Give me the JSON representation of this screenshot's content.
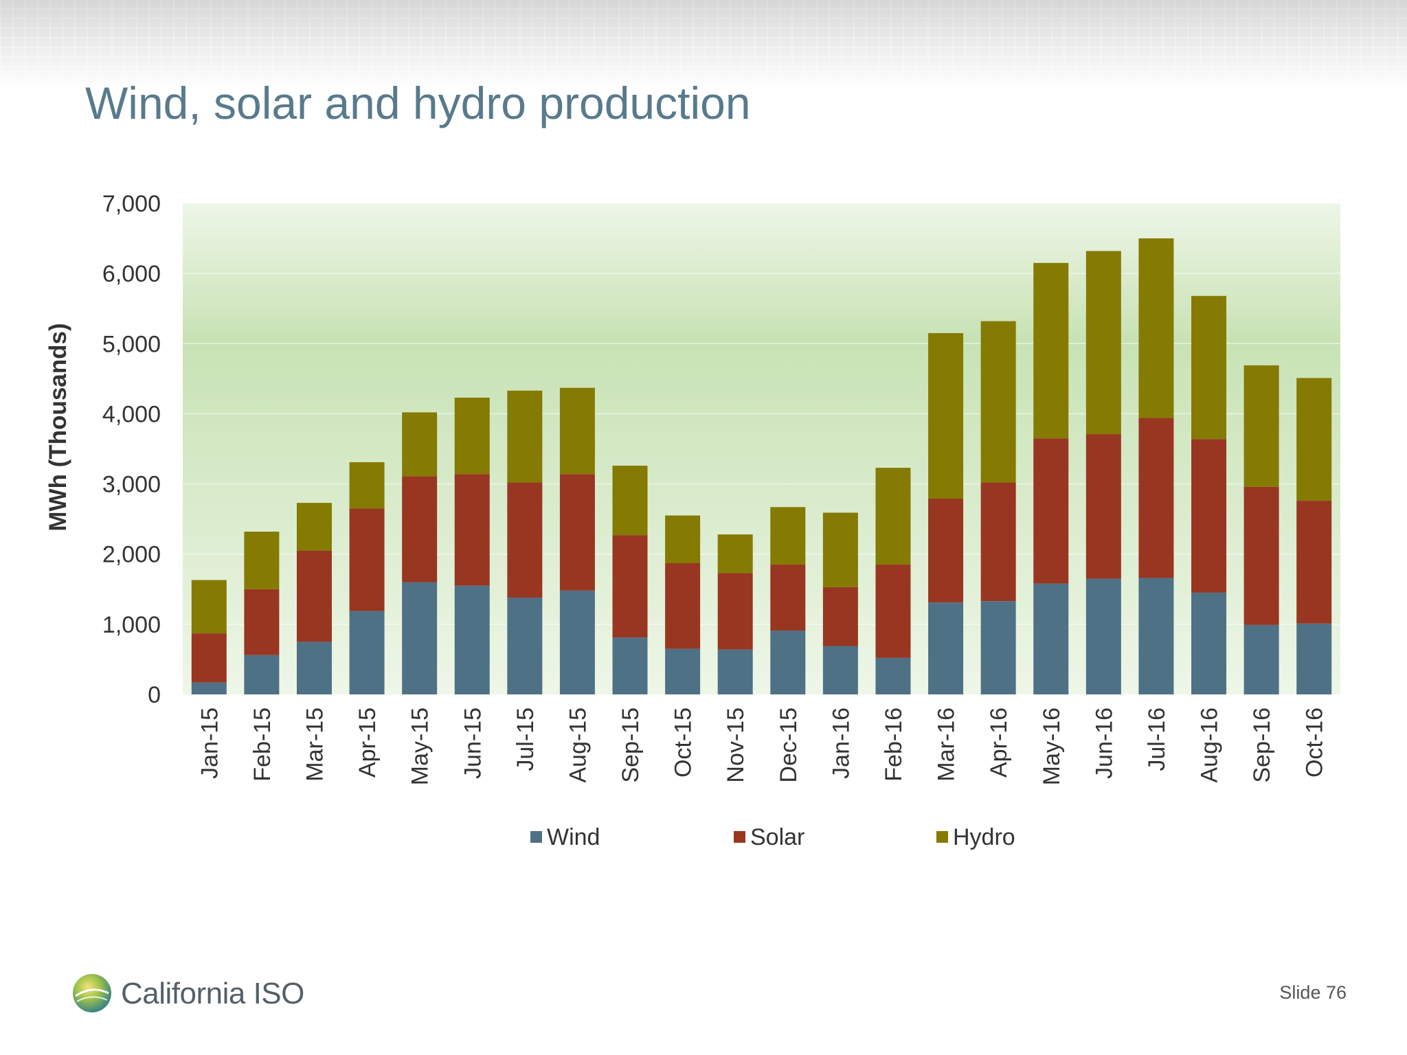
{
  "slide": {
    "title": "Wind, solar and hydro production",
    "slide_number": "Slide 76",
    "logo_text": "California ISO"
  },
  "colors": {
    "wind": "#4f7186",
    "solar": "#983621",
    "hydro": "#857a02",
    "title": "#587a8c",
    "plot_bg_top": "#c8e2b4",
    "plot_bg_bottom": "#eef6e8"
  },
  "chart_data": {
    "type": "bar",
    "stacked": true,
    "title": "",
    "xlabel": "",
    "ylabel": "MWh (Thousands)",
    "ylim": [
      0,
      7000
    ],
    "yticks": [
      0,
      1000,
      2000,
      3000,
      4000,
      5000,
      6000,
      7000
    ],
    "ytick_labels": [
      "0",
      "1,000",
      "2,000",
      "3,000",
      "4,000",
      "5,000",
      "6,000",
      "7,000"
    ],
    "grid": true,
    "legend_position": "bottom",
    "categories": [
      "Jan-15",
      "Feb-15",
      "Mar-15",
      "Apr-15",
      "May-15",
      "Jun-15",
      "Jul-15",
      "Aug-15",
      "Sep-15",
      "Oct-15",
      "Nov-15",
      "Dec-15",
      "Jan-16",
      "Feb-16",
      "Mar-16",
      "Apr-16",
      "May-16",
      "Jun-16",
      "Jul-16",
      "Aug-16",
      "Sep-16",
      "Oct-16"
    ],
    "series": [
      {
        "name": "Wind",
        "color": "#4f7186",
        "values": [
          170,
          560,
          750,
          1190,
          1600,
          1550,
          1380,
          1480,
          810,
          650,
          640,
          910,
          690,
          520,
          1310,
          1330,
          1580,
          1650,
          1660,
          1450,
          990,
          1010
        ]
      },
      {
        "name": "Solar",
        "color": "#983621",
        "values": [
          700,
          940,
          1300,
          1460,
          1510,
          1590,
          1640,
          1660,
          1460,
          1220,
          1090,
          940,
          840,
          1330,
          1480,
          1690,
          2070,
          2060,
          2280,
          2190,
          1970,
          1750
        ]
      },
      {
        "name": "Hydro",
        "color": "#857a02",
        "values": [
          760,
          820,
          680,
          660,
          910,
          1090,
          1310,
          1230,
          990,
          680,
          550,
          820,
          1060,
          1380,
          2360,
          2300,
          2500,
          2610,
          2560,
          2040,
          1730,
          1750
        ]
      }
    ]
  }
}
